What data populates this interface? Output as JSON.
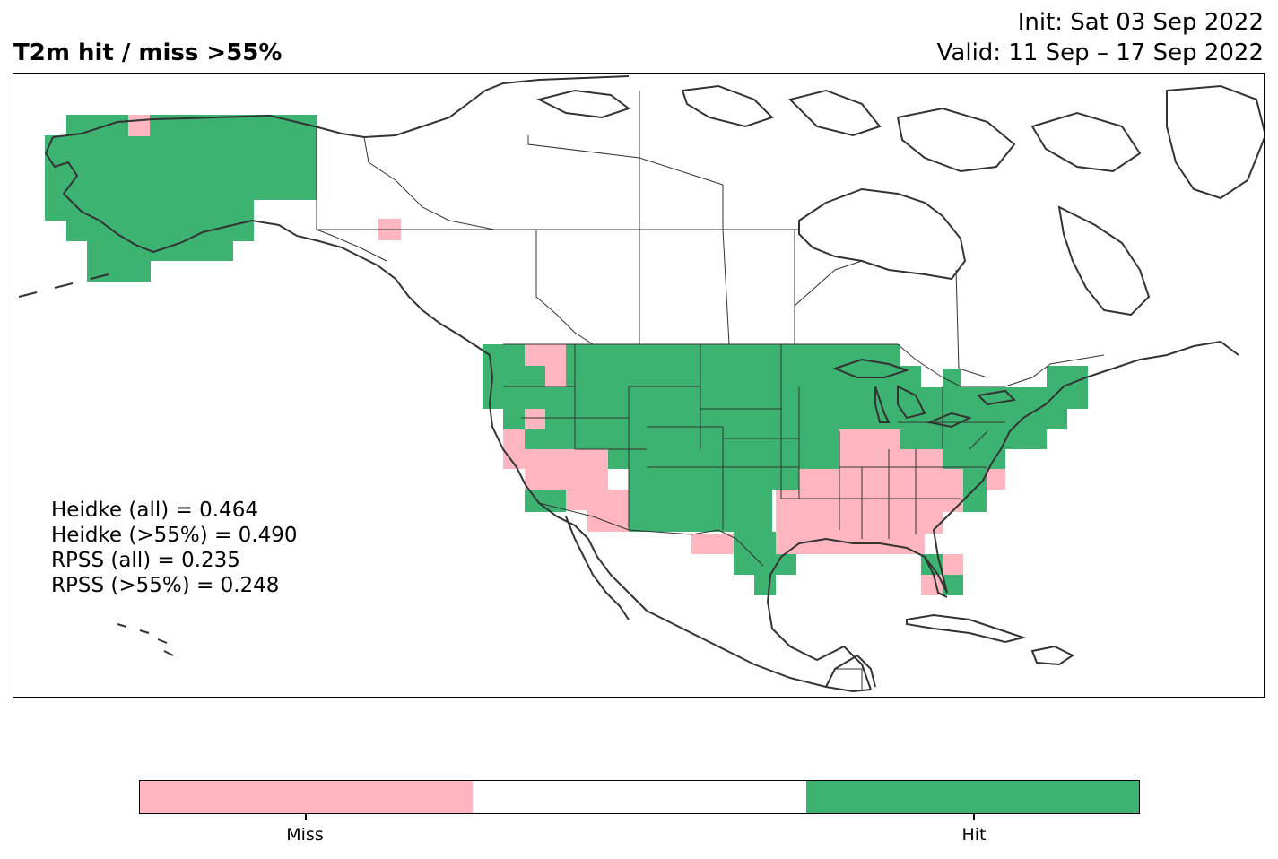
{
  "title": "T2m hit / miss  >55%",
  "init": "Init: Sat 03 Sep 2022",
  "valid": "Valid: 11 Sep – 17 Sep 2022",
  "stats": [
    "Heidke (all) = 0.464",
    "Heidke (>55%) = 0.490",
    "RPSS (all) = 0.235",
    "RPSS (>55%) = 0.248"
  ],
  "colors": {
    "miss": "#ffb6c1",
    "neutral": "#ffffff",
    "hit": "#3cb371",
    "coast": "#333333"
  },
  "legend": {
    "miss_label": "Miss",
    "hit_label": "Hit"
  }
}
